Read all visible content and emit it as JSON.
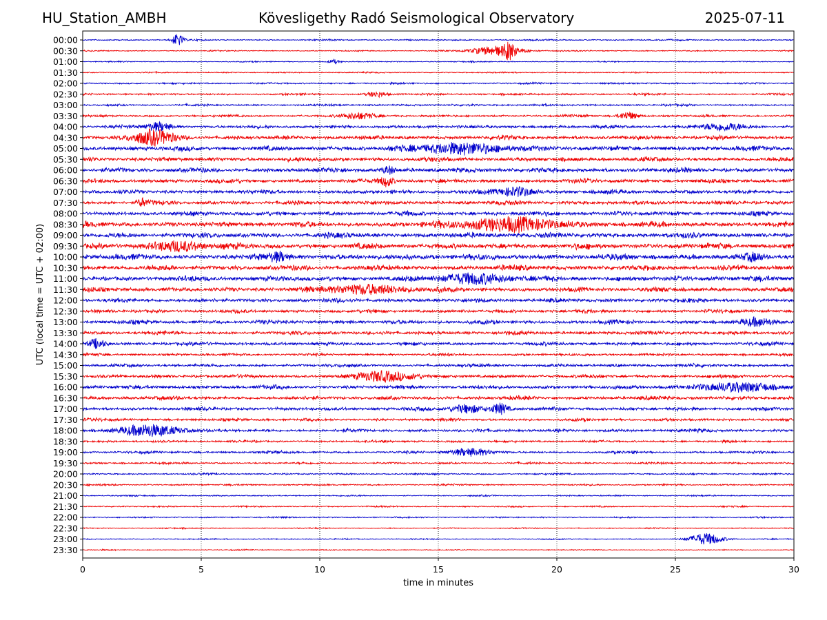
{
  "header": {
    "station": "HU_Station_AMBH",
    "observatory": "Kövesligethy Radó Seismological Observatory",
    "date": "2025-07-11"
  },
  "chart_data": {
    "type": "line",
    "title": "Kövesligethy Radó Seismological Observatory",
    "xlabel": "time in minutes",
    "ylabel": "UTC (local time = UTC + 02:00)",
    "xlim": [
      0,
      30
    ],
    "xticks": [
      "0",
      "5",
      "10",
      "15",
      "20",
      "25",
      "30"
    ],
    "x_grid": "dotted vertical lines at 5-minute intervals",
    "row_labels": [
      "00:00",
      "00:30",
      "01:00",
      "01:30",
      "02:00",
      "02:30",
      "03:00",
      "03:30",
      "04:00",
      "04:30",
      "05:00",
      "05:30",
      "06:00",
      "06:30",
      "07:00",
      "07:30",
      "08:00",
      "08:30",
      "09:00",
      "09:30",
      "10:00",
      "10:30",
      "11:00",
      "11:30",
      "12:00",
      "12:30",
      "13:00",
      "13:30",
      "14:00",
      "14:30",
      "15:00",
      "15:30",
      "16:00",
      "16:30",
      "17:00",
      "17:30",
      "18:00",
      "18:30",
      "19:00",
      "19:30",
      "20:00",
      "20:30",
      "21:00",
      "21:30",
      "22:00",
      "22:30",
      "23:00",
      "23:30"
    ],
    "trace_colors": [
      "#0000cc",
      "#ee0000"
    ],
    "color_rule": "alternating per row, starting with blue at 00:00",
    "baseline_noise": [
      0.25,
      0.22,
      0.2,
      0.22,
      0.3,
      0.35,
      0.35,
      0.4,
      0.55,
      0.7,
      0.85,
      0.75,
      0.8,
      0.7,
      0.7,
      0.7,
      0.75,
      0.9,
      0.9,
      0.95,
      1.0,
      0.9,
      0.9,
      0.8,
      0.7,
      0.6,
      0.7,
      0.65,
      0.6,
      0.45,
      0.55,
      0.6,
      0.65,
      0.65,
      0.6,
      0.5,
      0.55,
      0.4,
      0.45,
      0.35,
      0.3,
      0.3,
      0.25,
      0.25,
      0.25,
      0.2,
      0.2,
      0.2
    ],
    "events": [
      {
        "row": 0,
        "min": 4.0,
        "amp": 3.5,
        "dur": 0.35
      },
      {
        "row": 1,
        "min": 17.5,
        "amp": 2.8,
        "dur": 1.6
      },
      {
        "row": 1,
        "min": 18.0,
        "amp": 3.8,
        "dur": 0.3
      },
      {
        "row": 2,
        "min": 10.6,
        "amp": 1.2,
        "dur": 0.3
      },
      {
        "row": 5,
        "min": 12.4,
        "amp": 1.6,
        "dur": 0.6
      },
      {
        "row": 7,
        "min": 11.6,
        "amp": 1.6,
        "dur": 1.2
      },
      {
        "row": 7,
        "min": 23.0,
        "amp": 2.2,
        "dur": 0.6
      },
      {
        "row": 8,
        "min": 3.2,
        "amp": 2.6,
        "dur": 0.8
      },
      {
        "row": 8,
        "min": 27.0,
        "amp": 2.2,
        "dur": 1.3
      },
      {
        "row": 9,
        "min": 3.0,
        "amp": 3.8,
        "dur": 1.5
      },
      {
        "row": 10,
        "min": 16.0,
        "amp": 3.2,
        "dur": 2.5
      },
      {
        "row": 12,
        "min": 12.9,
        "amp": 2.2,
        "dur": 0.4
      },
      {
        "row": 13,
        "min": 12.8,
        "amp": 3.2,
        "dur": 0.4
      },
      {
        "row": 14,
        "min": 18.3,
        "amp": 2.6,
        "dur": 1.2
      },
      {
        "row": 15,
        "min": 2.5,
        "amp": 2.4,
        "dur": 0.3
      },
      {
        "row": 17,
        "min": 18.0,
        "amp": 3.8,
        "dur": 3.0
      },
      {
        "row": 19,
        "min": 4.0,
        "amp": 2.8,
        "dur": 1.5
      },
      {
        "row": 20,
        "min": 8.3,
        "amp": 2.2,
        "dur": 0.6
      },
      {
        "row": 20,
        "min": 28.3,
        "amp": 1.8,
        "dur": 0.6
      },
      {
        "row": 22,
        "min": 16.5,
        "amp": 3.0,
        "dur": 2.0
      },
      {
        "row": 23,
        "min": 12.0,
        "amp": 2.6,
        "dur": 2.5
      },
      {
        "row": 26,
        "min": 28.5,
        "amp": 2.0,
        "dur": 1.0
      },
      {
        "row": 28,
        "min": 0.6,
        "amp": 2.8,
        "dur": 0.5
      },
      {
        "row": 31,
        "min": 12.8,
        "amp": 2.6,
        "dur": 2.0
      },
      {
        "row": 32,
        "min": 27.5,
        "amp": 2.4,
        "dur": 2.5
      },
      {
        "row": 34,
        "min": 16.2,
        "amp": 2.4,
        "dur": 1.0
      },
      {
        "row": 34,
        "min": 17.6,
        "amp": 3.2,
        "dur": 0.5
      },
      {
        "row": 36,
        "min": 2.9,
        "amp": 3.4,
        "dur": 1.8
      },
      {
        "row": 38,
        "min": 16.3,
        "amp": 2.2,
        "dur": 1.2
      },
      {
        "row": 46,
        "min": 26.3,
        "amp": 3.4,
        "dur": 1.0
      }
    ]
  }
}
